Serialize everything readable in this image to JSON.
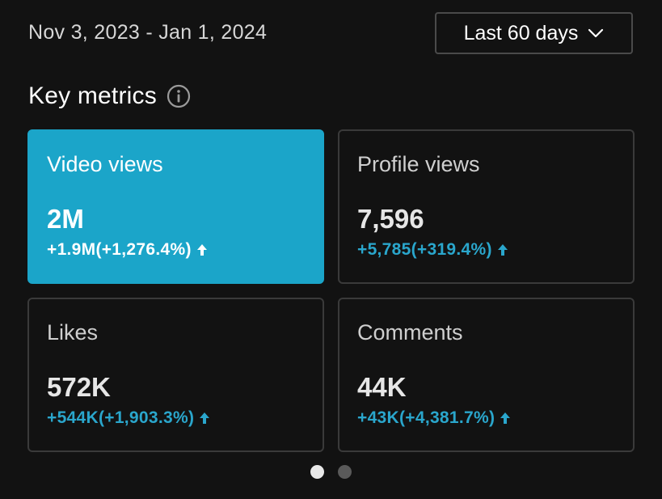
{
  "header": {
    "date_range": "Nov 3, 2023 - Jan 1, 2024",
    "period_select": {
      "label": "Last 60 days",
      "icon": "chevron-down-icon"
    }
  },
  "section": {
    "title": "Key metrics",
    "info_icon": "info-icon"
  },
  "metrics": [
    {
      "label": "Video views",
      "value": "2M",
      "change": "+1.9M(+1,276.4%)",
      "trend": "up",
      "selected": true
    },
    {
      "label": "Profile views",
      "value": "7,596",
      "change": "+5,785(+319.4%)",
      "trend": "up",
      "selected": false
    },
    {
      "label": "Likes",
      "value": "572K",
      "change": "+544K(+1,903.3%)",
      "trend": "up",
      "selected": false
    },
    {
      "label": "Comments",
      "value": "44K",
      "change": "+43K(+4,381.7%)",
      "trend": "up",
      "selected": false
    }
  ],
  "pagination": {
    "total_pages": 2,
    "current_page": 1
  },
  "colors": {
    "background": "#121212",
    "accent": "#1ba5c9",
    "positive_change": "#2aa6cc",
    "card_border": "#3a3a3a"
  }
}
